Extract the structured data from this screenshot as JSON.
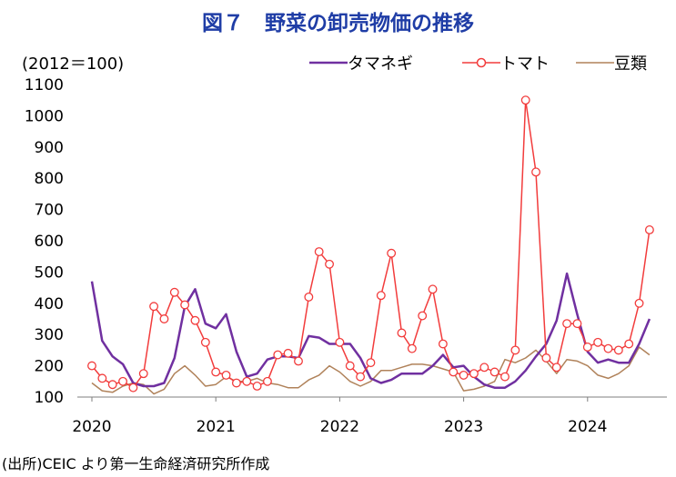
{
  "header": {
    "title": "図７　野菜の卸売物価の推移",
    "unit": "(2012＝100)",
    "source": "(出所)CEIC より第一生命経済研究所作成"
  },
  "colors": {
    "title": "#1f3da6",
    "onion": "#7030a0",
    "tomato": "#f23c3c",
    "beans": "#b0825a"
  },
  "chart_data": {
    "type": "line",
    "title": "図７　野菜の卸売物価の推移",
    "ylabel": "(2012＝100)",
    "xlabel": "",
    "ylim": [
      100,
      1100
    ],
    "yticks": [
      "100",
      "200",
      "300",
      "400",
      "500",
      "600",
      "700",
      "800",
      "900",
      "1000",
      "1100"
    ],
    "xticks": [
      "2020",
      "2021",
      "2022",
      "2023",
      "2024"
    ],
    "grid": false,
    "legend_position": "top-right",
    "x": [
      "2020-01",
      "2020-02",
      "2020-03",
      "2020-04",
      "2020-05",
      "2020-06",
      "2020-07",
      "2020-08",
      "2020-09",
      "2020-10",
      "2020-11",
      "2020-12",
      "2021-01",
      "2021-02",
      "2021-03",
      "2021-04",
      "2021-05",
      "2021-06",
      "2021-07",
      "2021-08",
      "2021-09",
      "2021-10",
      "2021-11",
      "2021-12",
      "2022-01",
      "2022-02",
      "2022-03",
      "2022-04",
      "2022-05",
      "2022-06",
      "2022-07",
      "2022-08",
      "2022-09",
      "2022-10",
      "2022-11",
      "2022-12",
      "2023-01",
      "2023-02",
      "2023-03",
      "2023-04",
      "2023-05",
      "2023-06",
      "2023-07",
      "2023-08",
      "2023-09",
      "2023-10",
      "2023-11",
      "2023-12",
      "2024-01",
      "2024-02",
      "2024-03",
      "2024-04",
      "2024-05",
      "2024-06",
      "2024-07"
    ],
    "series": [
      {
        "name": "タマネギ",
        "marker": "none",
        "values": [
          470,
          280,
          230,
          205,
          145,
          135,
          135,
          145,
          225,
          390,
          445,
          335,
          320,
          365,
          245,
          165,
          175,
          220,
          230,
          230,
          225,
          295,
          290,
          270,
          270,
          270,
          225,
          160,
          145,
          155,
          175,
          175,
          175,
          200,
          235,
          195,
          200,
          165,
          140,
          130,
          130,
          150,
          185,
          230,
          270,
          345,
          495,
          365,
          245,
          210,
          220,
          210,
          210,
          270,
          350
        ]
      },
      {
        "name": "トマト",
        "marker": "circle",
        "values": [
          200,
          160,
          140,
          150,
          130,
          175,
          390,
          350,
          435,
          395,
          345,
          275,
          180,
          170,
          145,
          150,
          135,
          150,
          235,
          240,
          215,
          420,
          565,
          525,
          275,
          200,
          165,
          210,
          425,
          560,
          305,
          255,
          360,
          445,
          270,
          180,
          170,
          175,
          195,
          180,
          165,
          250,
          1050,
          820,
          225,
          195,
          335,
          335,
          260,
          275,
          255,
          250,
          270,
          400,
          635
        ]
      },
      {
        "name": "豆類",
        "marker": "none",
        "values": [
          145,
          120,
          115,
          135,
          145,
          140,
          110,
          125,
          175,
          200,
          170,
          135,
          140,
          165,
          150,
          150,
          160,
          145,
          140,
          130,
          130,
          155,
          170,
          200,
          180,
          150,
          135,
          150,
          185,
          185,
          195,
          205,
          205,
          200,
          190,
          180,
          120,
          125,
          135,
          150,
          220,
          210,
          225,
          250,
          215,
          175,
          220,
          215,
          200,
          170,
          160,
          175,
          200,
          260,
          235
        ]
      }
    ]
  }
}
